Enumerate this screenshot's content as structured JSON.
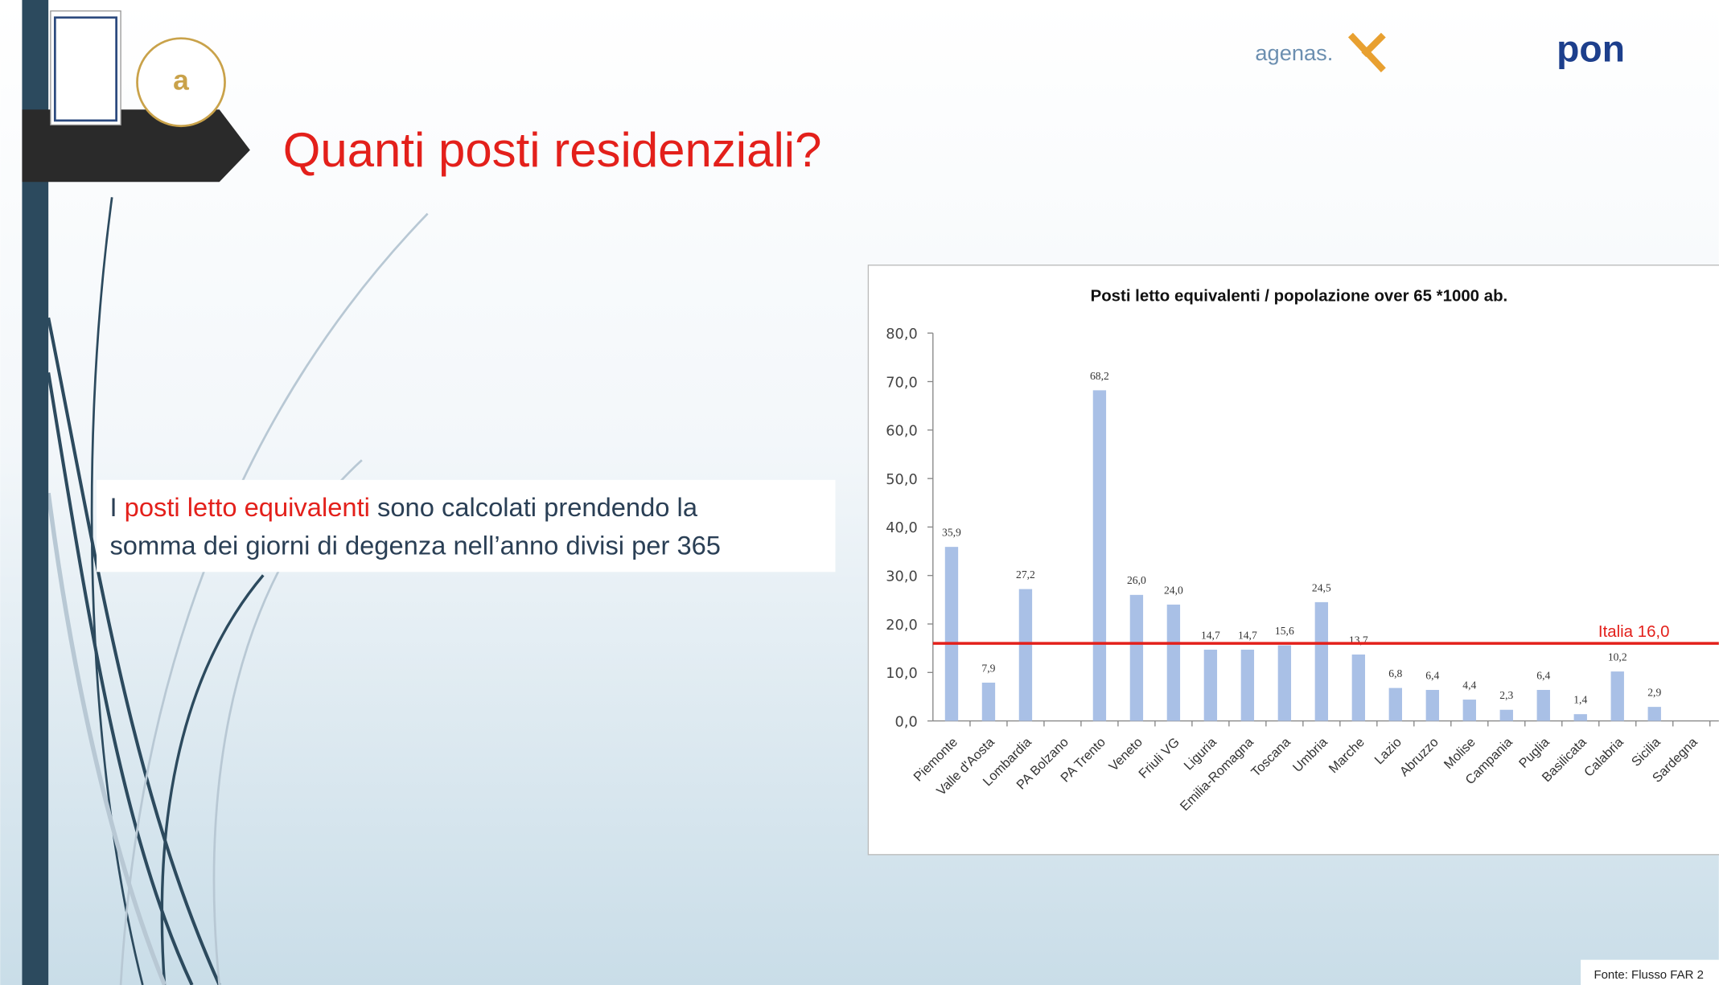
{
  "slide": {
    "title": "Quanti posti residenziali?",
    "text_lines": [
      [
        "I",
        "posti letto equivalenti",
        "sono calcolati prendendo la"
      ],
      [
        "somma dei giorni di degenza nell’anno divisi per 365"
      ]
    ],
    "logos": [
      "agenas.",
      "pon"
    ],
    "source": "Fonte: Flusso FAR 2"
  },
  "chart_data": {
    "type": "bar",
    "title": "Posti letto equivalenti / popolazione over 65 *1000 ab.",
    "categories": [
      "Piemonte",
      "Valle d'Aosta",
      "Lombardia",
      "PA Bolzano",
      "PA Trento",
      "Veneto",
      "Friuli VG",
      "Liguria",
      "Emilia-Romagna",
      "Toscana",
      "Umbria",
      "Marche",
      "Lazio",
      "Abruzzo",
      "Molise",
      "Campania",
      "Puglia",
      "Basilicata",
      "Calabria",
      "Sicilia",
      "Sardegna"
    ],
    "values": [
      35.9,
      7.9,
      27.2,
      null,
      68.2,
      26.0,
      24.0,
      14.7,
      14.7,
      15.6,
      24.5,
      13.7,
      6.8,
      6.4,
      4.4,
      2.3,
      6.4,
      1.4,
      10.2,
      2.9,
      null
    ],
    "value_labels": [
      "35,9",
      "7,9",
      "27,2",
      null,
      "68,2",
      "26,0",
      "24,0",
      "14,7",
      "14,7",
      "15,6",
      "24,5",
      "13,7",
      "6,8",
      "6,4",
      "4,4",
      "2,3",
      "6,4",
      "1,4",
      "10,2",
      "2,9",
      null
    ],
    "color": "#a9c0e6",
    "ylim": [
      0,
      80
    ],
    "yticks": [
      {
        "value": 0,
        "label": "0,0"
      },
      {
        "value": 10,
        "label": "10,0"
      },
      {
        "value": 20,
        "label": "20,0"
      },
      {
        "value": 30,
        "label": "30,0"
      },
      {
        "value": 40,
        "label": "40,0"
      },
      {
        "value": 50,
        "label": "50,0"
      },
      {
        "value": 60,
        "label": "60,0"
      },
      {
        "value": 70,
        "label": "70,0"
      },
      {
        "value": 80,
        "label": "80,0"
      }
    ],
    "reference_line": {
      "value": 16.0,
      "label": "Italia 16,0",
      "color": "#e3201b"
    }
  }
}
